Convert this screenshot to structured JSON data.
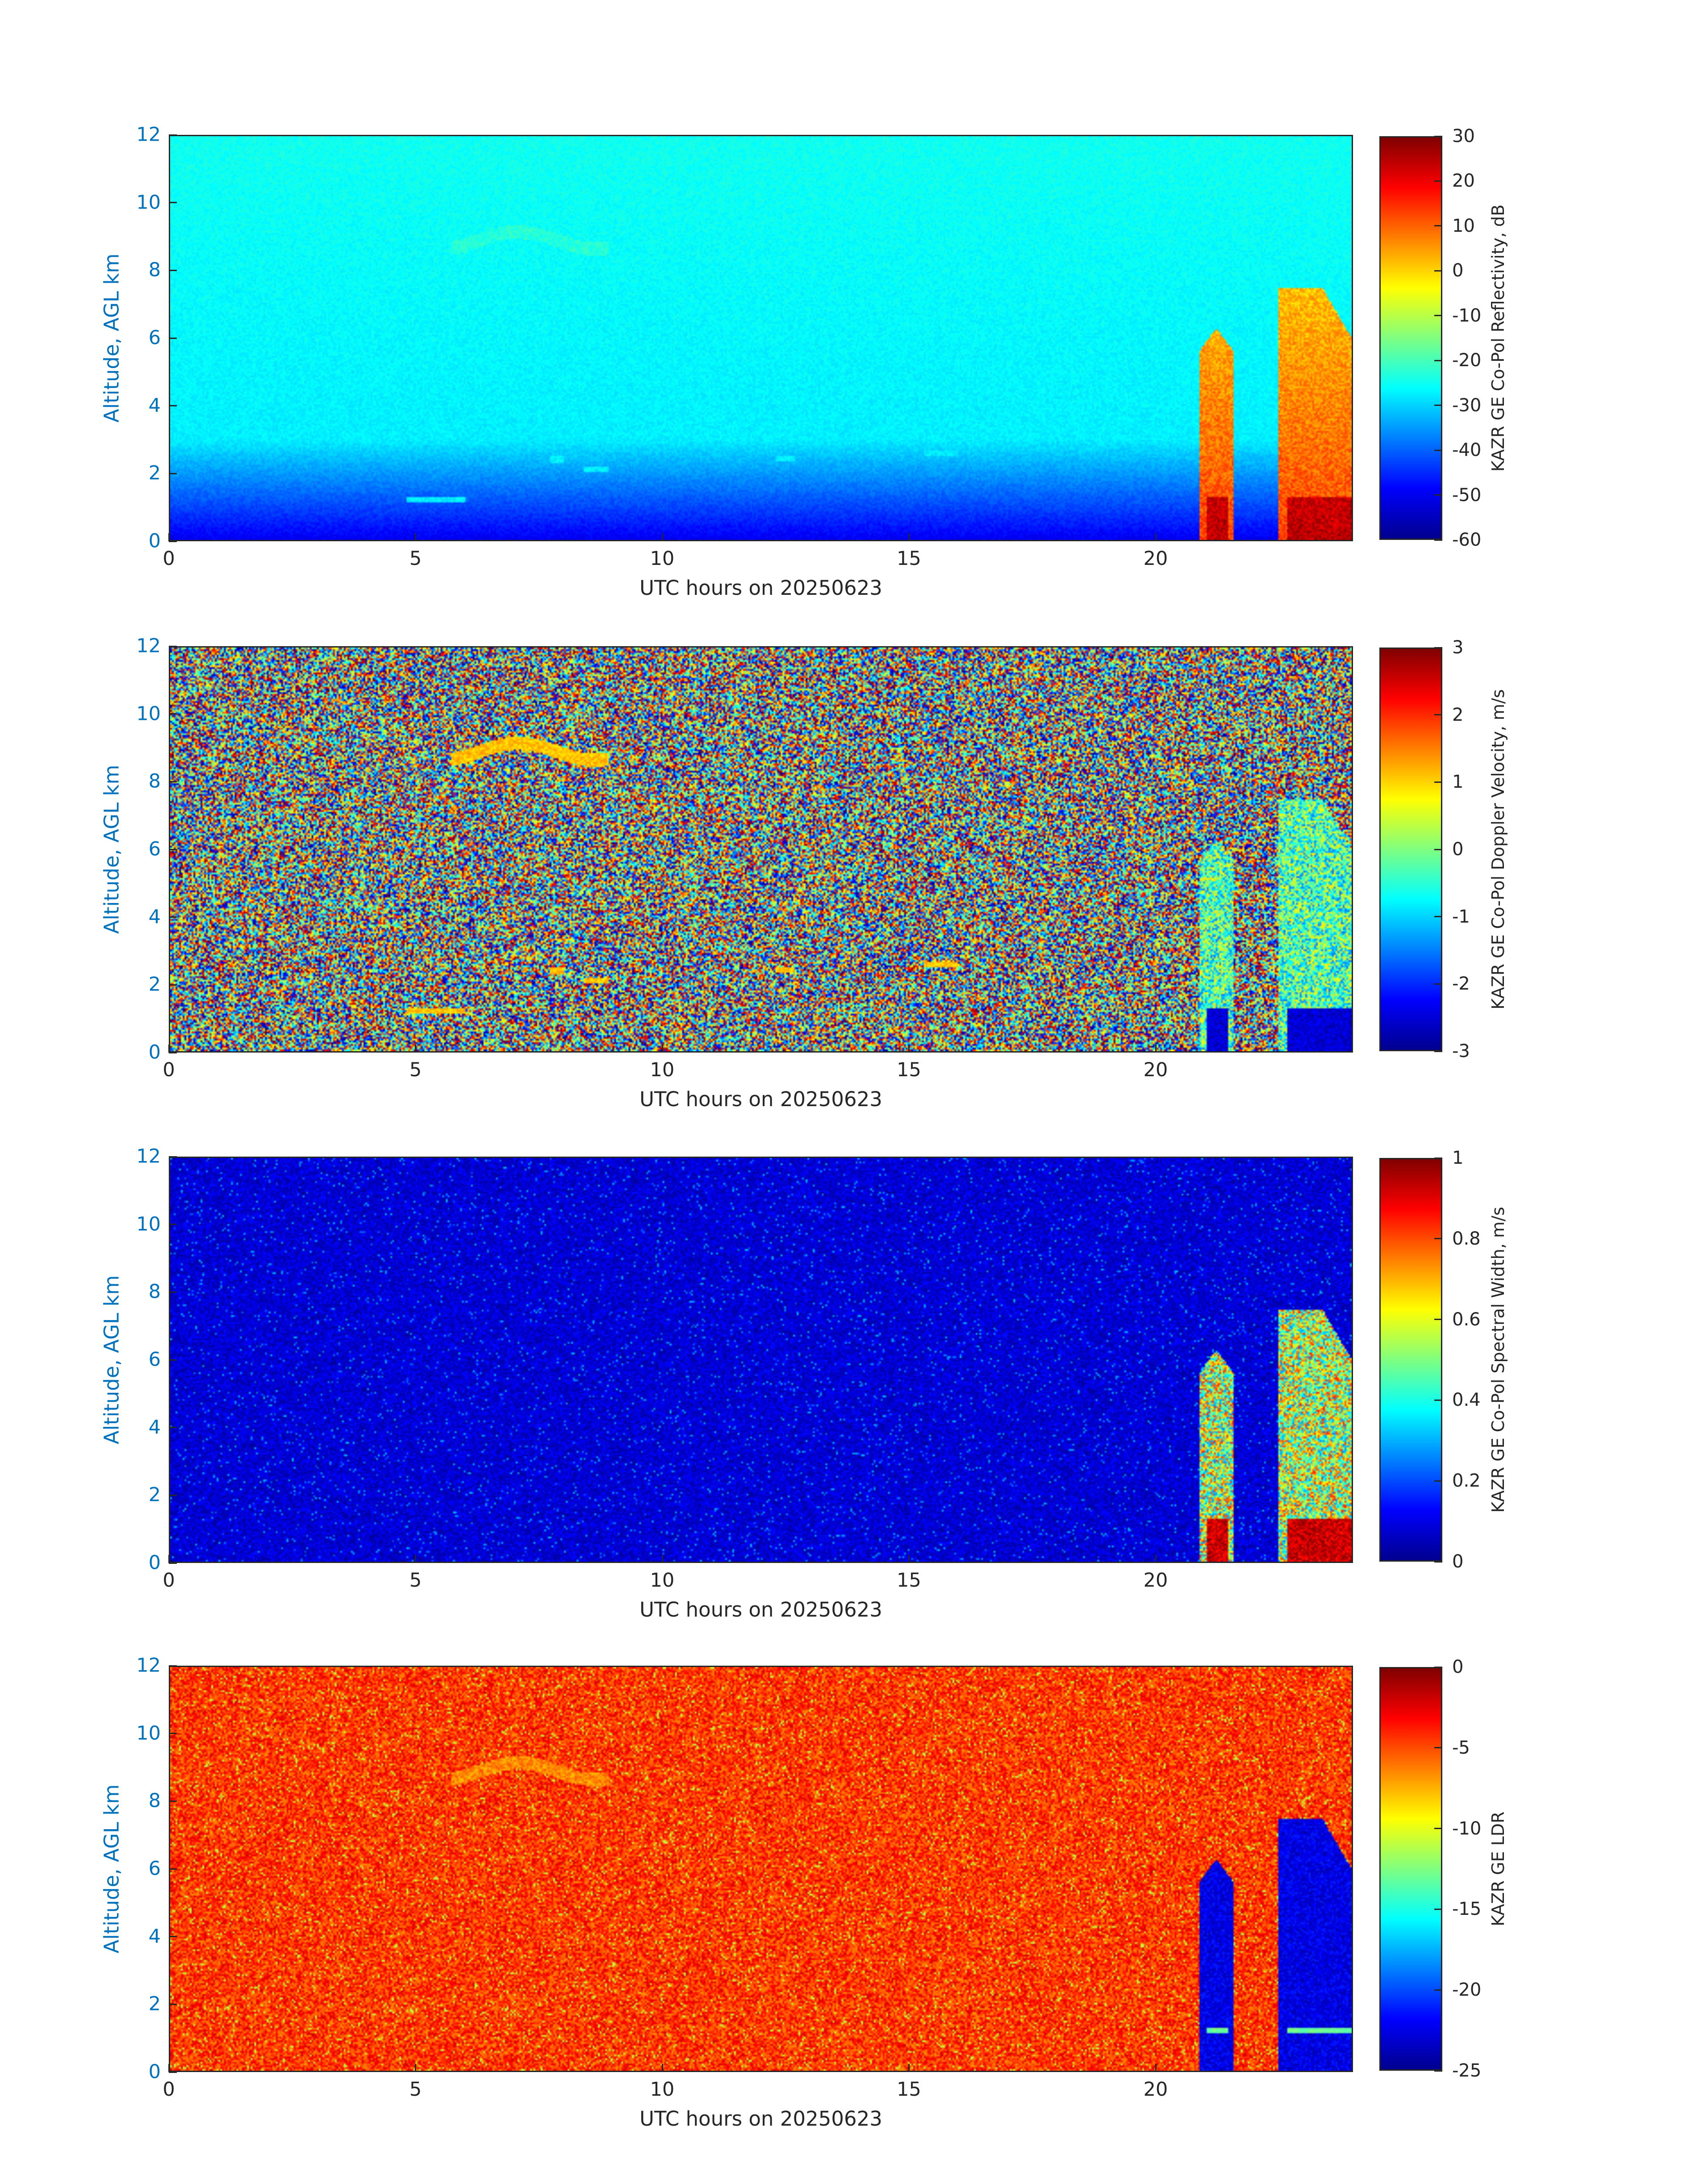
{
  "chart_data": [
    {
      "type": "heatmap",
      "field": "reflectivity",
      "colorbar_label": "KAZR GE Co-Pol Reflectivity, dB",
      "xlabel": "UTC hours on 20250623",
      "ylabel": "Altitude, AGL km",
      "xlim": [
        0,
        24
      ],
      "ylim": [
        0,
        12
      ],
      "x_ticks": [
        "0",
        "5",
        "10",
        "15",
        "20"
      ],
      "y_ticks": [
        "0",
        "2",
        "4",
        "6",
        "8",
        "10",
        "12"
      ],
      "color_range": [
        -60,
        30
      ],
      "color_ticks": [
        "30",
        "20",
        "10",
        "0",
        "-10",
        "-20",
        "-30",
        "-40",
        "-50",
        "-60"
      ],
      "colormap": "jet"
    },
    {
      "type": "heatmap",
      "field": "velocity",
      "colorbar_label": "KAZR GE Co-Pol Doppler Velocity, m/s",
      "xlabel": "UTC hours on 20250623",
      "ylabel": "Altitude, AGL km",
      "xlim": [
        0,
        24
      ],
      "ylim": [
        0,
        12
      ],
      "x_ticks": [
        "0",
        "5",
        "10",
        "15",
        "20"
      ],
      "y_ticks": [
        "0",
        "2",
        "4",
        "6",
        "8",
        "10",
        "12"
      ],
      "color_range": [
        -3,
        3
      ],
      "color_ticks": [
        "3",
        "2",
        "1",
        "0",
        "-1",
        "-2",
        "-3"
      ],
      "colormap": "jet"
    },
    {
      "type": "heatmap",
      "field": "spectral_width",
      "colorbar_label": "KAZR GE Co-Pol Spectral Width, m/s",
      "xlabel": "UTC hours on 20250623",
      "ylabel": "Altitude, AGL km",
      "xlim": [
        0,
        24
      ],
      "ylim": [
        0,
        12
      ],
      "x_ticks": [
        "0",
        "5",
        "10",
        "15",
        "20"
      ],
      "y_ticks": [
        "0",
        "2",
        "4",
        "6",
        "8",
        "10",
        "12"
      ],
      "color_range": [
        0,
        1
      ],
      "color_ticks": [
        "1",
        "0.8",
        "0.6",
        "0.4",
        "0.2",
        "0"
      ],
      "colormap": "jet"
    },
    {
      "type": "heatmap",
      "field": "ldr",
      "colorbar_label": "KAZR GE LDR",
      "xlabel": "UTC hours on 20250623",
      "ylabel": "Altitude, AGL km",
      "xlim": [
        0,
        24
      ],
      "ylim": [
        0,
        12
      ],
      "x_ticks": [
        "0",
        "5",
        "10",
        "15",
        "20"
      ],
      "y_ticks": [
        "0",
        "2",
        "4",
        "6",
        "8",
        "10",
        "12"
      ],
      "color_range": [
        -25,
        0
      ],
      "color_ticks": [
        "0",
        "-5",
        "-10",
        "-15",
        "-20",
        "-25"
      ],
      "colormap": "jet"
    }
  ]
}
